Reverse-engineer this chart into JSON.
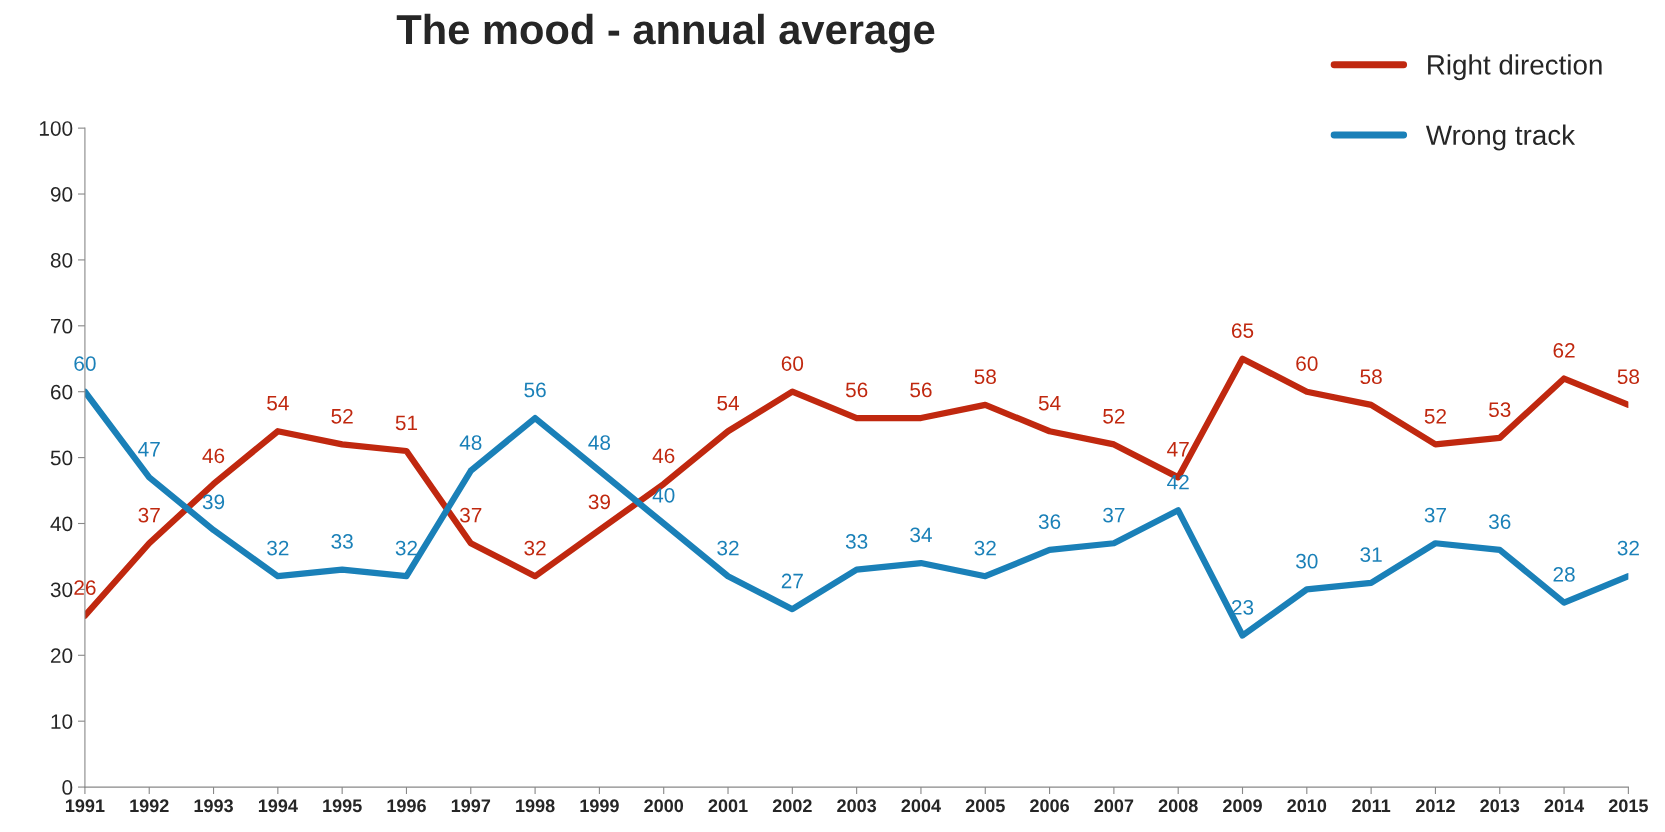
{
  "chart_data": {
    "type": "line",
    "title": "The mood - annual average",
    "categories": [
      "1991",
      "1992",
      "1993",
      "1994",
      "1995",
      "1996",
      "1997",
      "1998",
      "1999",
      "2000",
      "2001",
      "2002",
      "2003",
      "2004",
      "2005",
      "2006",
      "2007",
      "2008",
      "2009",
      "2010",
      "2011",
      "2012",
      "2013",
      "2014",
      "2015"
    ],
    "series": [
      {
        "name": "Right direction",
        "color": "#c0280f",
        "values": [
          26,
          37,
          46,
          54,
          52,
          51,
          37,
          32,
          39,
          46,
          54,
          60,
          56,
          56,
          58,
          54,
          52,
          47,
          65,
          60,
          58,
          52,
          53,
          62,
          58
        ]
      },
      {
        "name": "Wrong track",
        "color": "#1a80b8",
        "values": [
          60,
          47,
          39,
          32,
          33,
          32,
          48,
          56,
          48,
          40,
          32,
          27,
          33,
          34,
          32,
          36,
          37,
          42,
          23,
          30,
          31,
          37,
          36,
          28,
          32
        ]
      }
    ],
    "ylim": [
      0,
      100
    ],
    "yticks": [
      0,
      10,
      20,
      30,
      40,
      50,
      60,
      70,
      80,
      90,
      100
    ],
    "data_labels": true,
    "grid": false,
    "legend": "top right",
    "marker": "none",
    "line_style": "solid"
  }
}
